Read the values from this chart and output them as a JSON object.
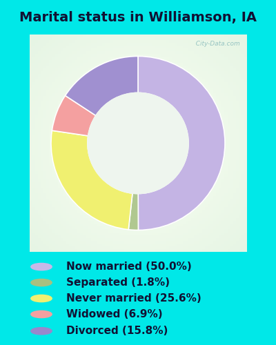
{
  "title": "Marital status in Williamson, IA",
  "slices": [
    {
      "label": "Now married (50.0%)",
      "value": 50.0,
      "color": "#c4b4e4"
    },
    {
      "label": "Separated (1.8%)",
      "value": 1.8,
      "color": "#b0c890"
    },
    {
      "label": "Never married (25.6%)",
      "value": 25.6,
      "color": "#f0f070"
    },
    {
      "label": "Widowed (6.9%)",
      "value": 6.9,
      "color": "#f4a0a0"
    },
    {
      "label": "Divorced (15.8%)",
      "value": 15.8,
      "color": "#a090d0"
    }
  ],
  "bg_outer": "#00e8e8",
  "legend_dot_colors": [
    "#c8b8e8",
    "#a8c080",
    "#f0f070",
    "#f4a0a0",
    "#9888cc"
  ],
  "title_fontsize": 14,
  "legend_fontsize": 11,
  "watermark": "  City-Data.com"
}
